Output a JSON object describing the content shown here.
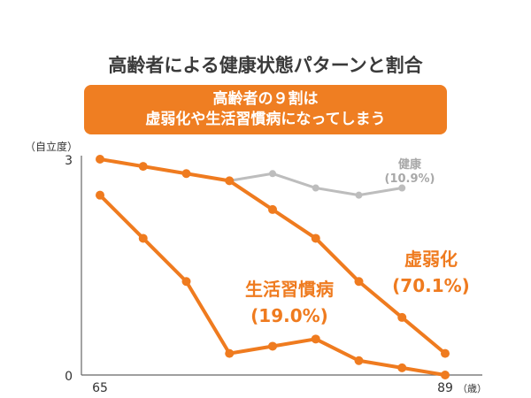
{
  "title": "高齢者による健康状態パターンと割合",
  "banner": {
    "line1": "高齢者の９割は",
    "line2": "虚弱化や生活習慣病になってしまう"
  },
  "colors": {
    "orange": "#ef7b1f",
    "gray": "#bdbdbd",
    "gray_text": "#a8a8a8",
    "axis": "#666666",
    "text": "#333333"
  },
  "chart_data": {
    "type": "line",
    "title": "高齢者による健康状態パターンと割合",
    "ylabel": "（自立度）",
    "xlabel_unit": "（歳）",
    "x_tick_labels": [
      "65",
      "89"
    ],
    "y_tick_labels": [
      "3",
      "0"
    ],
    "xlim": [
      0,
      8
    ],
    "ylim": [
      0,
      3
    ],
    "series": [
      {
        "name": "健康",
        "share_label": "(10.9%)",
        "color_key": "gray",
        "x": [
          0,
          1,
          2,
          3,
          4,
          5,
          6,
          7
        ],
        "values": [
          3.0,
          2.9,
          2.8,
          2.7,
          2.8,
          2.6,
          2.5,
          2.6
        ]
      },
      {
        "name": "虚弱化",
        "share_label": "(70.1%)",
        "color_key": "orange",
        "x": [
          0,
          1,
          2,
          3,
          4,
          5,
          6,
          7,
          8
        ],
        "values": [
          3.0,
          2.9,
          2.8,
          2.7,
          2.3,
          1.9,
          1.3,
          0.8,
          0.3
        ]
      },
      {
        "name": "生活習慣病",
        "share_label": "(19.0%)",
        "color_key": "orange",
        "x": [
          0,
          1,
          2,
          3,
          4,
          5,
          6,
          7,
          8
        ],
        "values": [
          2.5,
          1.9,
          1.3,
          0.3,
          0.4,
          0.5,
          0.2,
          0.1,
          0.0
        ]
      }
    ]
  }
}
